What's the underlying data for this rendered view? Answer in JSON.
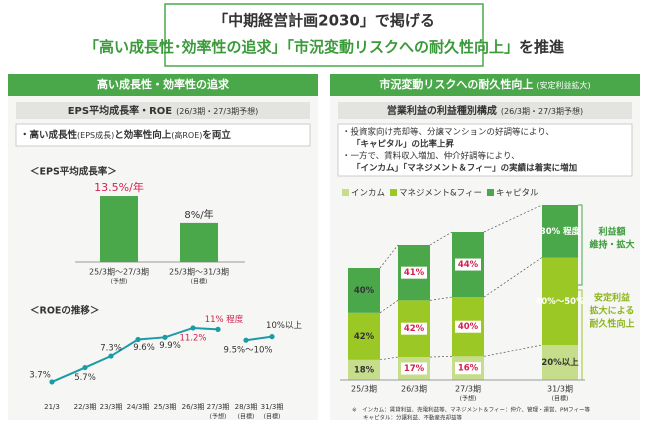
{
  "title": {
    "line1": "「中期経営計画2030」で掲げる",
    "line2": [
      "「高い成長性･効率性の追求」",
      "「市況変動リスクへの耐久性向上」",
      "を推進"
    ]
  },
  "left": {
    "header": "高い成長性・効率性の追求",
    "subheader": "EPS平均成長率・ROE",
    "subheader_note": "(26/3期・27/3期予想)",
    "bullet": [
      "・高い成長性",
      "(EPS成長)",
      "と効率性向上",
      "(高ROE)",
      "を両立"
    ]
  },
  "right": {
    "header": "市況変動リスクへの耐久性向上",
    "header_note": "(安定利益拡大)",
    "subheader": "営業利益の利益種別構成",
    "subheader_note": "(26/3期・27/3期予想)",
    "bullets": [
      "・投資家向け売却等、分譲マンションの好調等により、",
      "「キャピタル」の比率上昇",
      "・一方で、賃料収入増加、仲介好調等により、",
      "「インカム」「マネジメント＆フィー」の実績は着実に増加"
    ],
    "note_top": [
      "利益額",
      "維持・拡大"
    ],
    "note_bottom": [
      "安定利益",
      "拡大による",
      "耐久性向上"
    ],
    "footnote": [
      "※　インカム：賃貸利益、売電利益等、マネジメント＆フィー：仲介、管理・運営、PMフィー等",
      "キャピタル：分譲利益、不動産売却益等"
    ]
  },
  "chart_data": [
    {
      "type": "bar",
      "title": "＜EPS平均成長率＞",
      "categories": [
        "25/3期～27/3期",
        "25/3期～31/3期"
      ],
      "category_notes": [
        "(予想)",
        "(目標)"
      ],
      "values": [
        13.5,
        8
      ],
      "value_labels": [
        "13.5%/年",
        "8%/年"
      ],
      "color": "#4aa84a",
      "ylim": [
        0,
        15
      ]
    },
    {
      "type": "line",
      "title": "＜ROEの推移＞",
      "categories": [
        "21/3",
        "22/3期",
        "23/3期",
        "24/3期",
        "25/3期",
        "26/3期",
        "27/3期",
        "28/3期",
        "31/3期"
      ],
      "category_notes": [
        null,
        null,
        null,
        null,
        null,
        null,
        "(予想)",
        "(目標)",
        "(目標)"
      ],
      "series": [
        {
          "color": "#1a9ba8",
          "values": [
            3.7,
            5.7,
            7.3,
            9.6,
            9.9,
            11.2,
            11,
            null,
            null
          ],
          "value_labels": [
            "3.7%",
            "5.7%",
            "7.3%",
            "9.6%",
            "9.9%",
            "11.2%",
            "11% 程度",
            null,
            null
          ]
        },
        {
          "color": "#1a9ba8",
          "values": [
            null,
            null,
            null,
            null,
            null,
            null,
            null,
            9.5,
            10
          ],
          "value_labels": [
            null,
            null,
            null,
            null,
            null,
            null,
            null,
            "9.5%～10%",
            "10%以上"
          ]
        }
      ],
      "ylim": [
        0,
        14
      ]
    },
    {
      "type": "stacked_bar",
      "categories": [
        "25/3期",
        "26/3期",
        "27/3期",
        "31/3期"
      ],
      "category_notes": [
        null,
        null,
        "(予想)",
        "(目標)"
      ],
      "series": [
        {
          "name": "インカム",
          "color": "#c6de8c",
          "values": [
            18,
            17,
            16,
            20
          ],
          "value_labels": [
            "18%",
            "17%",
            "16%",
            "20%以上"
          ]
        },
        {
          "name": "マネジメント&フィー",
          "color": "#9cc826",
          "values": [
            42,
            42,
            40,
            50
          ],
          "value_labels": [
            "42%",
            "42%",
            "40%",
            "40%～50%"
          ]
        },
        {
          "name": "キャピタル",
          "color": "#4aa84a",
          "values": [
            40,
            41,
            44,
            30
          ],
          "value_labels": [
            "40%",
            "41%",
            "44%",
            "30% 程度"
          ]
        }
      ]
    }
  ]
}
